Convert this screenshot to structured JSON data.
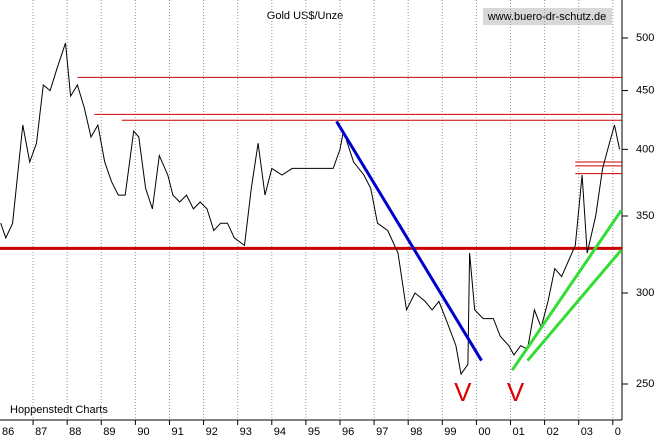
{
  "chart_data": {
    "type": "line",
    "title": "Gold US$/Unze",
    "source": "www.buero-dr-schutz.de",
    "credit": "Hoppenstedt Charts",
    "log_scale": true,
    "grid": true,
    "color": "#000000",
    "xlim": [
      1986.03,
      2004.27
    ],
    "ylim": [
      232.6,
      539.5
    ],
    "xticks": [
      {
        "value": 1986,
        "label": "86"
      },
      {
        "value": 1987,
        "label": "87"
      },
      {
        "value": 1988,
        "label": "88"
      },
      {
        "value": 1989,
        "label": "89"
      },
      {
        "value": 1990,
        "label": "90"
      },
      {
        "value": 1991,
        "label": "91"
      },
      {
        "value": 1992,
        "label": "92"
      },
      {
        "value": 1993,
        "label": "93"
      },
      {
        "value": 1994,
        "label": "94"
      },
      {
        "value": 1995,
        "label": "95"
      },
      {
        "value": 1996,
        "label": "96"
      },
      {
        "value": 1997,
        "label": "97"
      },
      {
        "value": 1998,
        "label": "98"
      },
      {
        "value": 1999,
        "label": "99"
      },
      {
        "value": 2000,
        "label": "00"
      },
      {
        "value": 2001,
        "label": "01"
      },
      {
        "value": 2002,
        "label": "02"
      },
      {
        "value": 2003,
        "label": "03"
      },
      {
        "value": 2004,
        "label": "0"
      }
    ],
    "yticks": [
      250,
      300,
      350,
      400,
      450,
      500
    ],
    "x": [
      1986.05,
      1986.2,
      1986.4,
      1986.7,
      1986.9,
      1987.1,
      1987.3,
      1987.5,
      1987.7,
      1987.95,
      1988.1,
      1988.3,
      1988.5,
      1988.7,
      1988.9,
      1989.1,
      1989.3,
      1989.5,
      1989.7,
      1989.95,
      1990.1,
      1990.3,
      1990.5,
      1990.7,
      1990.95,
      1991.1,
      1991.3,
      1991.5,
      1991.7,
      1991.9,
      1992.1,
      1992.3,
      1992.5,
      1992.7,
      1992.9,
      1993.2,
      1993.4,
      1993.6,
      1993.8,
      1994.0,
      1994.3,
      1994.6,
      1994.9,
      1995.2,
      1995.5,
      1995.8,
      1996.0,
      1996.1,
      1996.4,
      1996.7,
      1996.9,
      1997.1,
      1997.4,
      1997.7,
      1997.95,
      1998.2,
      1998.5,
      1998.7,
      1998.9,
      1999.1,
      1999.4,
      1999.55,
      1999.75,
      1999.8,
      1999.95,
      2000.2,
      2000.5,
      2000.7,
      2000.95,
      2001.1,
      2001.3,
      2001.5,
      2001.7,
      2001.9,
      2002.1,
      2002.3,
      2002.5,
      2002.7,
      2002.9,
      2003.1,
      2003.25,
      2003.5,
      2003.7,
      2003.9,
      2004.05,
      2004.2
    ],
    "series": [
      {
        "name": "Gold",
        "color": "#000000",
        "values": [
          345,
          335,
          345,
          420,
          390,
          405,
          455,
          450,
          470,
          495,
          445,
          455,
          435,
          410,
          420,
          390,
          375,
          365,
          365,
          415,
          410,
          370,
          355,
          395,
          380,
          365,
          360,
          365,
          355,
          360,
          355,
          340,
          345,
          345,
          335,
          330,
          370,
          405,
          365,
          385,
          380,
          385,
          385,
          385,
          385,
          385,
          400,
          415,
          390,
          380,
          370,
          345,
          340,
          325,
          290,
          300,
          295,
          290,
          295,
          285,
          270,
          255,
          260,
          325,
          290,
          285,
          285,
          275,
          270,
          265,
          270,
          268,
          290,
          280,
          295,
          315,
          310,
          320,
          330,
          380,
          325,
          350,
          385,
          405,
          420,
          400
        ]
      }
    ],
    "hlines": [
      {
        "value": 462,
        "from": 1988.3,
        "color": "#cc0000",
        "width": 1
      },
      {
        "value": 429,
        "from": 1988.8,
        "color": "#cc0000",
        "width": 1
      },
      {
        "value": 424,
        "from": 1989.6,
        "color": "#cc0000",
        "width": 1
      },
      {
        "value": 328,
        "from": 1986.03,
        "color": "#cc0000",
        "width": 3
      },
      {
        "value": 390,
        "from": 2002.9,
        "color": "#cc0000",
        "width": 1
      },
      {
        "value": 387,
        "from": 2002.9,
        "color": "#cc0000",
        "width": 1
      },
      {
        "value": 381,
        "from": 2002.9,
        "color": "#cc0000",
        "width": 1
      }
    ],
    "trendlines": [
      {
        "x": [
          1995.9,
          2000.15
        ],
        "y": [
          423,
          262
        ],
        "color": "#0000cc"
      },
      {
        "x": [
          2001.05,
          2004.25
        ],
        "y": [
          257,
          354
        ],
        "color": "#33dd33"
      },
      {
        "x": [
          2001.5,
          2004.25
        ],
        "y": [
          262,
          327
        ],
        "color": "#33dd33"
      }
    ],
    "annotations": [
      {
        "text": "V",
        "x": 1999.6,
        "y": 245,
        "color": "#dd0000"
      },
      {
        "text": "V",
        "x": 2001.15,
        "y": 245,
        "color": "#dd0000"
      }
    ]
  }
}
